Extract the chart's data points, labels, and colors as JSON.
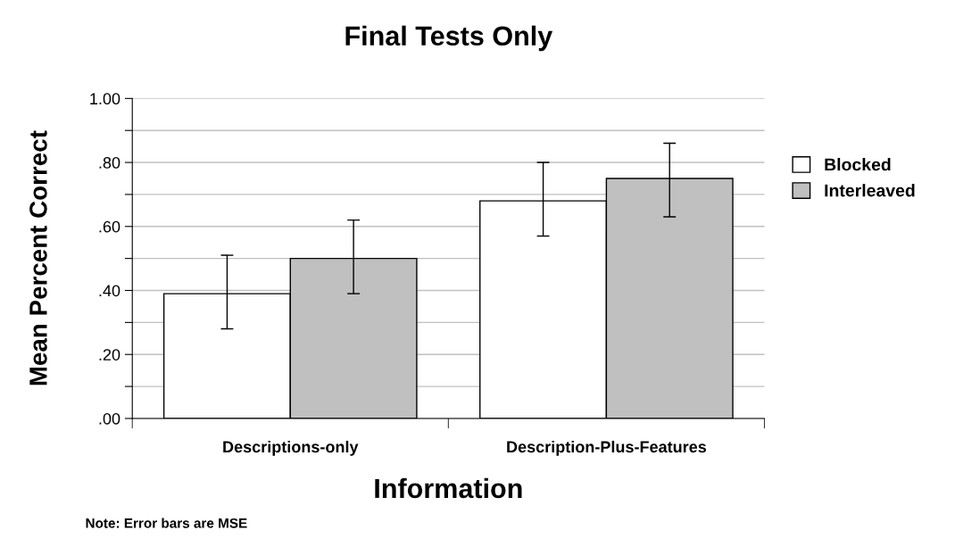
{
  "chart_data": {
    "type": "bar",
    "title": "Final Tests Only",
    "xlabel": "Information",
    "ylabel": "Mean Percent Correct",
    "categories": [
      "Descriptions-only",
      "Description-Plus-Features"
    ],
    "series": [
      {
        "name": "Blocked",
        "color": "#ffffff",
        "values": [
          0.39,
          0.68
        ],
        "errors": [
          [
            0.28,
            0.51
          ],
          [
            0.57,
            0.8
          ]
        ]
      },
      {
        "name": "Interleaved",
        "color": "#c0c0c0",
        "values": [
          0.5,
          0.75
        ],
        "errors": [
          [
            0.39,
            0.62
          ],
          [
            0.63,
            0.86
          ]
        ]
      }
    ],
    "ylim": [
      0,
      1
    ],
    "yticks": [
      {
        "value": 0,
        "label": ".00"
      },
      {
        "value": 0.1,
        "label": null
      },
      {
        "value": 0.2,
        "label": ".20"
      },
      {
        "value": 0.3,
        "label": null
      },
      {
        "value": 0.4,
        "label": ".40"
      },
      {
        "value": 0.5,
        "label": null
      },
      {
        "value": 0.6,
        "label": ".60"
      },
      {
        "value": 0.7,
        "label": null
      },
      {
        "value": 0.8,
        "label": ".80"
      },
      {
        "value": 0.9,
        "label": null
      },
      {
        "value": 1,
        "label": "1.00"
      }
    ],
    "grid": "y",
    "legend": "right",
    "annotations": [
      "Note: Error bars are MSE"
    ]
  }
}
